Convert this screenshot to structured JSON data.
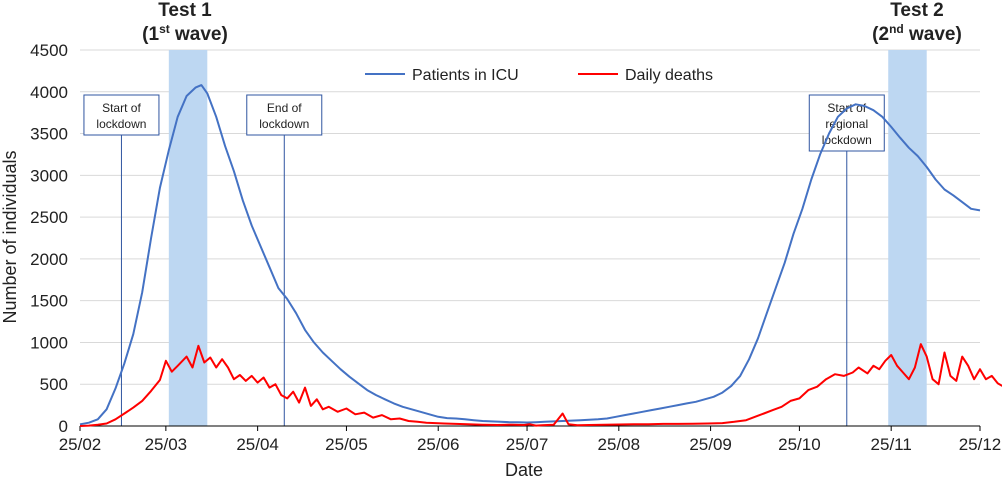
{
  "chart_data": {
    "type": "line",
    "title": "",
    "xlabel": "Date",
    "ylabel": "Number of individuals",
    "ylim": [
      0,
      4500
    ],
    "yticks": [
      0,
      500,
      1000,
      1500,
      2000,
      2500,
      3000,
      3500,
      4000,
      4500
    ],
    "grid": "horizontal",
    "legend_position": "top-center",
    "x_ticks": [
      "25/02",
      "25/03",
      "25/04",
      "25/05",
      "25/06",
      "25/07",
      "25/08",
      "25/09",
      "25/10",
      "25/11",
      "25/12"
    ],
    "colors": {
      "icu": "#4472C4",
      "deaths": "#FF0000",
      "band": "#BDD7F2",
      "vline": "#2F55A0",
      "grid": "#D9D9D9"
    },
    "series": [
      {
        "name": "Patients in ICU",
        "key": "icu",
        "points": [
          [
            "2020-02-25",
            20
          ],
          [
            "2020-02-28",
            40
          ],
          [
            "2020-03-02",
            80
          ],
          [
            "2020-03-05",
            200
          ],
          [
            "2020-03-08",
            450
          ],
          [
            "2020-03-11",
            750
          ],
          [
            "2020-03-14",
            1100
          ],
          [
            "2020-03-17",
            1600
          ],
          [
            "2020-03-20",
            2250
          ],
          [
            "2020-03-23",
            2850
          ],
          [
            "2020-03-26",
            3300
          ],
          [
            "2020-03-29",
            3700
          ],
          [
            "2020-04-01",
            3950
          ],
          [
            "2020-04-04",
            4050
          ],
          [
            "2020-04-06",
            4080
          ],
          [
            "2020-04-08",
            3980
          ],
          [
            "2020-04-11",
            3700
          ],
          [
            "2020-04-14",
            3350
          ],
          [
            "2020-04-17",
            3050
          ],
          [
            "2020-04-20",
            2700
          ],
          [
            "2020-04-23",
            2400
          ],
          [
            "2020-04-26",
            2150
          ],
          [
            "2020-04-29",
            1900
          ],
          [
            "2020-05-02",
            1650
          ],
          [
            "2020-05-05",
            1520
          ],
          [
            "2020-05-08",
            1350
          ],
          [
            "2020-05-11",
            1150
          ],
          [
            "2020-05-14",
            1000
          ],
          [
            "2020-05-17",
            880
          ],
          [
            "2020-05-20",
            780
          ],
          [
            "2020-05-23",
            680
          ],
          [
            "2020-05-26",
            590
          ],
          [
            "2020-05-29",
            510
          ],
          [
            "2020-06-01",
            430
          ],
          [
            "2020-06-04",
            370
          ],
          [
            "2020-06-07",
            320
          ],
          [
            "2020-06-10",
            270
          ],
          [
            "2020-06-13",
            230
          ],
          [
            "2020-06-16",
            200
          ],
          [
            "2020-06-19",
            170
          ],
          [
            "2020-06-22",
            140
          ],
          [
            "2020-06-25",
            110
          ],
          [
            "2020-06-28",
            95
          ],
          [
            "2020-07-01",
            90
          ],
          [
            "2020-07-04",
            80
          ],
          [
            "2020-07-07",
            70
          ],
          [
            "2020-07-10",
            60
          ],
          [
            "2020-07-13",
            55
          ],
          [
            "2020-07-16",
            50
          ],
          [
            "2020-07-19",
            45
          ],
          [
            "2020-07-22",
            45
          ],
          [
            "2020-07-25",
            42
          ],
          [
            "2020-07-28",
            45
          ],
          [
            "2020-07-31",
            50
          ],
          [
            "2020-08-03",
            55
          ],
          [
            "2020-08-06",
            60
          ],
          [
            "2020-08-09",
            65
          ],
          [
            "2020-08-12",
            70
          ],
          [
            "2020-08-15",
            75
          ],
          [
            "2020-08-18",
            80
          ],
          [
            "2020-08-21",
            90
          ],
          [
            "2020-08-24",
            110
          ],
          [
            "2020-08-27",
            130
          ],
          [
            "2020-08-30",
            150
          ],
          [
            "2020-09-02",
            170
          ],
          [
            "2020-09-05",
            190
          ],
          [
            "2020-09-08",
            210
          ],
          [
            "2020-09-11",
            230
          ],
          [
            "2020-09-14",
            250
          ],
          [
            "2020-09-17",
            270
          ],
          [
            "2020-09-20",
            290
          ],
          [
            "2020-09-23",
            320
          ],
          [
            "2020-09-26",
            350
          ],
          [
            "2020-09-29",
            400
          ],
          [
            "2020-10-02",
            480
          ],
          [
            "2020-10-05",
            600
          ],
          [
            "2020-10-08",
            800
          ],
          [
            "2020-10-11",
            1050
          ],
          [
            "2020-10-14",
            1350
          ],
          [
            "2020-10-17",
            1650
          ],
          [
            "2020-10-20",
            1950
          ],
          [
            "2020-10-23",
            2300
          ],
          [
            "2020-10-26",
            2600
          ],
          [
            "2020-10-29",
            2950
          ],
          [
            "2020-11-01",
            3250
          ],
          [
            "2020-11-04",
            3500
          ],
          [
            "2020-11-07",
            3700
          ],
          [
            "2020-11-10",
            3800
          ],
          [
            "2020-11-13",
            3850
          ],
          [
            "2020-11-16",
            3830
          ],
          [
            "2020-11-19",
            3780
          ],
          [
            "2020-11-22",
            3700
          ],
          [
            "2020-11-25",
            3580
          ],
          [
            "2020-11-28",
            3450
          ],
          [
            "2020-12-01",
            3330
          ],
          [
            "2020-12-04",
            3230
          ],
          [
            "2020-12-07",
            3100
          ],
          [
            "2020-12-10",
            2950
          ],
          [
            "2020-12-13",
            2830
          ],
          [
            "2020-12-16",
            2760
          ],
          [
            "2020-12-19",
            2680
          ],
          [
            "2020-12-22",
            2600
          ],
          [
            "2020-12-25",
            2580
          ]
        ]
      },
      {
        "name": "Daily deaths",
        "key": "deaths",
        "points": [
          [
            "2020-02-25",
            0
          ],
          [
            "2020-02-28",
            5
          ],
          [
            "2020-03-02",
            15
          ],
          [
            "2020-03-05",
            30
          ],
          [
            "2020-03-08",
            80
          ],
          [
            "2020-03-11",
            150
          ],
          [
            "2020-03-14",
            220
          ],
          [
            "2020-03-17",
            300
          ],
          [
            "2020-03-20",
            420
          ],
          [
            "2020-03-23",
            550
          ],
          [
            "2020-03-25",
            780
          ],
          [
            "2020-03-27",
            650
          ],
          [
            "2020-03-29",
            720
          ],
          [
            "2020-04-01",
            830
          ],
          [
            "2020-04-03",
            700
          ],
          [
            "2020-04-05",
            960
          ],
          [
            "2020-04-07",
            760
          ],
          [
            "2020-04-09",
            820
          ],
          [
            "2020-04-11",
            700
          ],
          [
            "2020-04-13",
            800
          ],
          [
            "2020-04-15",
            700
          ],
          [
            "2020-04-17",
            560
          ],
          [
            "2020-04-19",
            610
          ],
          [
            "2020-04-21",
            540
          ],
          [
            "2020-04-23",
            600
          ],
          [
            "2020-04-25",
            520
          ],
          [
            "2020-04-27",
            580
          ],
          [
            "2020-04-29",
            460
          ],
          [
            "2020-05-01",
            500
          ],
          [
            "2020-05-03",
            370
          ],
          [
            "2020-05-05",
            330
          ],
          [
            "2020-05-07",
            410
          ],
          [
            "2020-05-09",
            280
          ],
          [
            "2020-05-11",
            460
          ],
          [
            "2020-05-13",
            240
          ],
          [
            "2020-05-15",
            320
          ],
          [
            "2020-05-17",
            200
          ],
          [
            "2020-05-19",
            230
          ],
          [
            "2020-05-22",
            170
          ],
          [
            "2020-05-25",
            210
          ],
          [
            "2020-05-28",
            140
          ],
          [
            "2020-05-31",
            160
          ],
          [
            "2020-06-03",
            100
          ],
          [
            "2020-06-06",
            130
          ],
          [
            "2020-06-09",
            80
          ],
          [
            "2020-06-12",
            90
          ],
          [
            "2020-06-15",
            60
          ],
          [
            "2020-06-18",
            50
          ],
          [
            "2020-06-21",
            40
          ],
          [
            "2020-06-24",
            35
          ],
          [
            "2020-06-27",
            30
          ],
          [
            "2020-07-01",
            25
          ],
          [
            "2020-07-05",
            20
          ],
          [
            "2020-07-10",
            15
          ],
          [
            "2020-07-15",
            12
          ],
          [
            "2020-07-20",
            15
          ],
          [
            "2020-07-24",
            12
          ],
          [
            "2020-07-26",
            20
          ],
          [
            "2020-07-28",
            5
          ],
          [
            "2020-07-30",
            10
          ],
          [
            "2020-08-03",
            15
          ],
          [
            "2020-08-06",
            150
          ],
          [
            "2020-08-08",
            20
          ],
          [
            "2020-08-11",
            10
          ],
          [
            "2020-08-15",
            12
          ],
          [
            "2020-08-20",
            15
          ],
          [
            "2020-08-25",
            18
          ],
          [
            "2020-08-30",
            20
          ],
          [
            "2020-09-04",
            22
          ],
          [
            "2020-09-09",
            25
          ],
          [
            "2020-09-14",
            25
          ],
          [
            "2020-09-19",
            28
          ],
          [
            "2020-09-24",
            30
          ],
          [
            "2020-09-29",
            35
          ],
          [
            "2020-10-03",
            50
          ],
          [
            "2020-10-07",
            70
          ],
          [
            "2020-10-10",
            110
          ],
          [
            "2020-10-13",
            150
          ],
          [
            "2020-10-16",
            190
          ],
          [
            "2020-10-19",
            230
          ],
          [
            "2020-10-22",
            300
          ],
          [
            "2020-10-25",
            330
          ],
          [
            "2020-10-28",
            430
          ],
          [
            "2020-10-31",
            470
          ],
          [
            "2020-11-03",
            560
          ],
          [
            "2020-11-06",
            620
          ],
          [
            "2020-11-09",
            600
          ],
          [
            "2020-11-12",
            640
          ],
          [
            "2020-11-14",
            700
          ],
          [
            "2020-11-17",
            630
          ],
          [
            "2020-11-19",
            720
          ],
          [
            "2020-11-21",
            680
          ],
          [
            "2020-11-23",
            780
          ],
          [
            "2020-11-25",
            850
          ],
          [
            "2020-11-27",
            720
          ],
          [
            "2020-11-29",
            640
          ],
          [
            "2020-12-01",
            560
          ],
          [
            "2020-12-03",
            700
          ],
          [
            "2020-12-05",
            980
          ],
          [
            "2020-12-07",
            830
          ],
          [
            "2020-12-09",
            560
          ],
          [
            "2020-12-11",
            500
          ],
          [
            "2020-12-13",
            880
          ],
          [
            "2020-12-15",
            600
          ],
          [
            "2020-12-17",
            540
          ],
          [
            "2020-12-19",
            830
          ],
          [
            "2020-12-21",
            720
          ],
          [
            "2020-12-23",
            560
          ],
          [
            "2020-12-25",
            680
          ],
          [
            "2020-12-27",
            560
          ],
          [
            "2020-12-29",
            600
          ],
          [
            "2020-12-31",
            510
          ],
          [
            "2021-01-02",
            470
          ],
          [
            "2021-01-03",
            260
          ]
        ]
      }
    ],
    "shaded_periods": [
      {
        "label_line1": "Test 1",
        "label_line2": "(1st wave)",
        "label_main": "1",
        "label_sup": "st",
        "label_end": " wave)",
        "start": "2020-03-26",
        "end": "2020-04-08"
      },
      {
        "label_line1": "Test 2",
        "label_line2": "(2nd wave)",
        "label_main": "2",
        "label_sup": "nd",
        "label_end": " wave)",
        "start": "2020-11-24",
        "end": "2020-12-07"
      }
    ],
    "annotations": [
      {
        "lines": [
          "Start of",
          "lockdown"
        ],
        "date": "2020-03-10"
      },
      {
        "lines": [
          "End of",
          "lockdown"
        ],
        "date": "2020-05-04"
      },
      {
        "lines": [
          "Start of",
          "regional",
          "lockdown"
        ],
        "date": "2020-11-10"
      }
    ]
  }
}
